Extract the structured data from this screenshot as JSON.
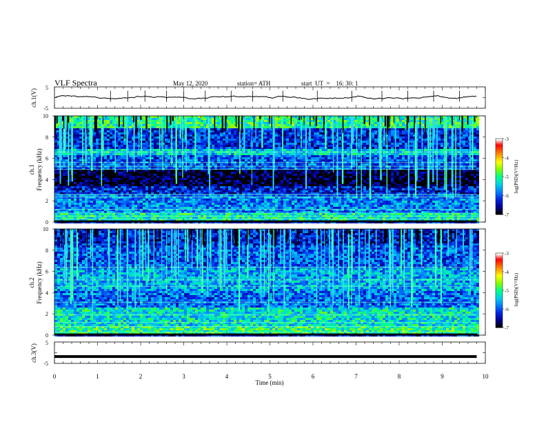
{
  "header": {
    "title": "VLF  Spectra",
    "date": "May 12, 2020",
    "station": "station= ATH",
    "start": "start  UT  =    16: 30: 1"
  },
  "chart_data": [
    {
      "type": "line",
      "panel": "ch1-waveform",
      "ylabel": "ch.1(V)",
      "ylim": [
        -5,
        5
      ],
      "yticks": [
        "5",
        "-5"
      ],
      "xlim": [
        0,
        10
      ],
      "x_extent_min": [
        0,
        9.8
      ],
      "y_level_approx": 0,
      "spikes_approx_min": [
        1.3,
        1.7,
        2.1,
        2.6,
        3.0,
        3.5,
        4.1,
        4.6,
        5.3,
        6.1,
        6.9,
        7.6,
        8.2,
        8.8,
        9.4
      ],
      "grid": false
    },
    {
      "type": "heatmap",
      "panel": "ch1-spectrogram",
      "ylabel_top": "ch.1",
      "ylabel": "Frequency  (kHz)",
      "ylim": [
        0,
        10
      ],
      "yticks": [
        "10",
        "8",
        "6",
        "4",
        "2",
        "0"
      ],
      "xlim": [
        0,
        10
      ],
      "colorbar": {
        "label": "log(PSD)(V²/Hz)",
        "range": [
          -7,
          -3
        ],
        "ticks": [
          "-3",
          "-4",
          "-5",
          "-6",
          "-7"
        ],
        "colormap": [
          "#000000",
          "#0000c8",
          "#0064ff",
          "#00c8ff",
          "#00ff96",
          "#64ff00",
          "#ffff00",
          "#ff8c00",
          "#ff0000",
          "#ffffff"
        ]
      },
      "bands_khz": [
        {
          "from": 9.0,
          "to": 10.0,
          "level": -5.0
        },
        {
          "from": 7.0,
          "to": 9.0,
          "level": -6.2
        },
        {
          "from": 6.4,
          "to": 7.0,
          "level": -5.4
        },
        {
          "from": 5.0,
          "to": 6.4,
          "level": -6.0
        },
        {
          "from": 3.5,
          "to": 5.0,
          "level": -6.9
        },
        {
          "from": 2.6,
          "to": 3.5,
          "level": -6.3
        },
        {
          "from": 1.0,
          "to": 2.6,
          "level": -5.8
        },
        {
          "from": 0.2,
          "to": 1.0,
          "level": -5.2
        }
      ],
      "tone_lines_khz": [
        0.3,
        0.55,
        0.85,
        1.2,
        2.35,
        2.6,
        4.95,
        5.25,
        5.6,
        6.6
      ]
    },
    {
      "type": "heatmap",
      "panel": "ch2-spectrogram",
      "ylabel_top": "ch.2",
      "ylabel": "Frequency  (kHz)",
      "ylim": [
        0,
        10
      ],
      "yticks": [
        "10",
        "8",
        "6",
        "4",
        "2",
        "0"
      ],
      "xlim": [
        0,
        10
      ],
      "colorbar": {
        "label": "log(PSD)(V²/Hz)",
        "range": [
          -7,
          -3
        ],
        "ticks": [
          "-3",
          "-4",
          "-5",
          "-6",
          "-7"
        ]
      },
      "bands_khz": [
        {
          "from": 8.5,
          "to": 10.0,
          "level": -6.3
        },
        {
          "from": 6.4,
          "to": 8.5,
          "level": -6.0
        },
        {
          "from": 4.2,
          "to": 6.4,
          "level": -5.6
        },
        {
          "from": 2.6,
          "to": 4.2,
          "level": -5.9
        },
        {
          "from": 1.0,
          "to": 2.6,
          "level": -5.3
        },
        {
          "from": 0.2,
          "to": 1.0,
          "level": -5.0
        }
      ],
      "tone_lines_khz": [
        0.3,
        0.8,
        1.2,
        1.9,
        3.1,
        4.6,
        5.2,
        6.4
      ]
    },
    {
      "type": "line",
      "panel": "ch3-waveform",
      "ylabel": "ch.3(V)",
      "ylim": [
        -5,
        5
      ],
      "yticks": [
        "5",
        "-5"
      ],
      "xlim": [
        0,
        10
      ],
      "x_extent_min": [
        0,
        9.8
      ],
      "y_level_approx": -1.8,
      "grid": false
    }
  ],
  "time_axis": {
    "label": "Time  (min)",
    "ticks": [
      "0",
      "1",
      "2",
      "3",
      "4",
      "5",
      "6",
      "7",
      "8",
      "9",
      "10"
    ]
  }
}
